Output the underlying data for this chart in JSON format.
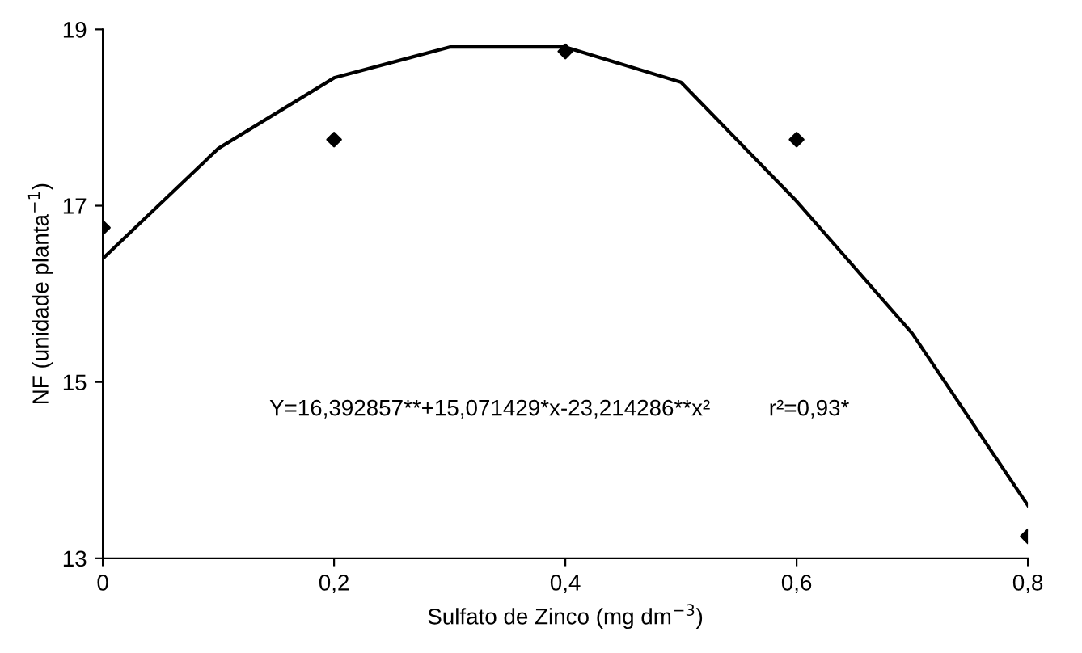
{
  "chart_data": {
    "type": "scatter",
    "xlabel": "Sulfato de Zinco (mg dm$^{−3}$)",
    "ylabel": "NF (unidade planta$^{−1}$)",
    "x": [
      0,
      0.2,
      0.4,
      0.6,
      0.8
    ],
    "series": [
      {
        "color": "#000000",
        "marker": "diamond",
        "values": [
          16.75,
          17.75,
          18.75,
          17.75,
          13.25
        ]
      },
      {
        "type": "line",
        "color": "#000000",
        "line_style": "solid",
        "x": [
          0,
          0.1,
          0.2,
          0.3,
          0.4,
          0.5,
          0.6,
          0.7,
          0.8
        ],
        "values": [
          16.4,
          17.65,
          18.45,
          18.8,
          18.8,
          18.4,
          17.05,
          15.55,
          13.6
        ]
      }
    ],
    "xlim": [
      0,
      0.8
    ],
    "ylim": [
      13,
      19
    ],
    "xticks": [
      0,
      {
        "value": 0.2,
        "label": "0,2"
      },
      {
        "value": 0.4,
        "label": "0,4"
      },
      {
        "value": 0.6,
        "label": "0,6"
      },
      {
        "value": 0.8,
        "label": "0,8"
      }
    ],
    "yticks": [
      13,
      15,
      17,
      19
    ],
    "grid": false,
    "legend": false,
    "annotations": [
      "Y=16,392857**+15,071429*x-23,214286**x²",
      "r²=0,93*"
    ]
  }
}
